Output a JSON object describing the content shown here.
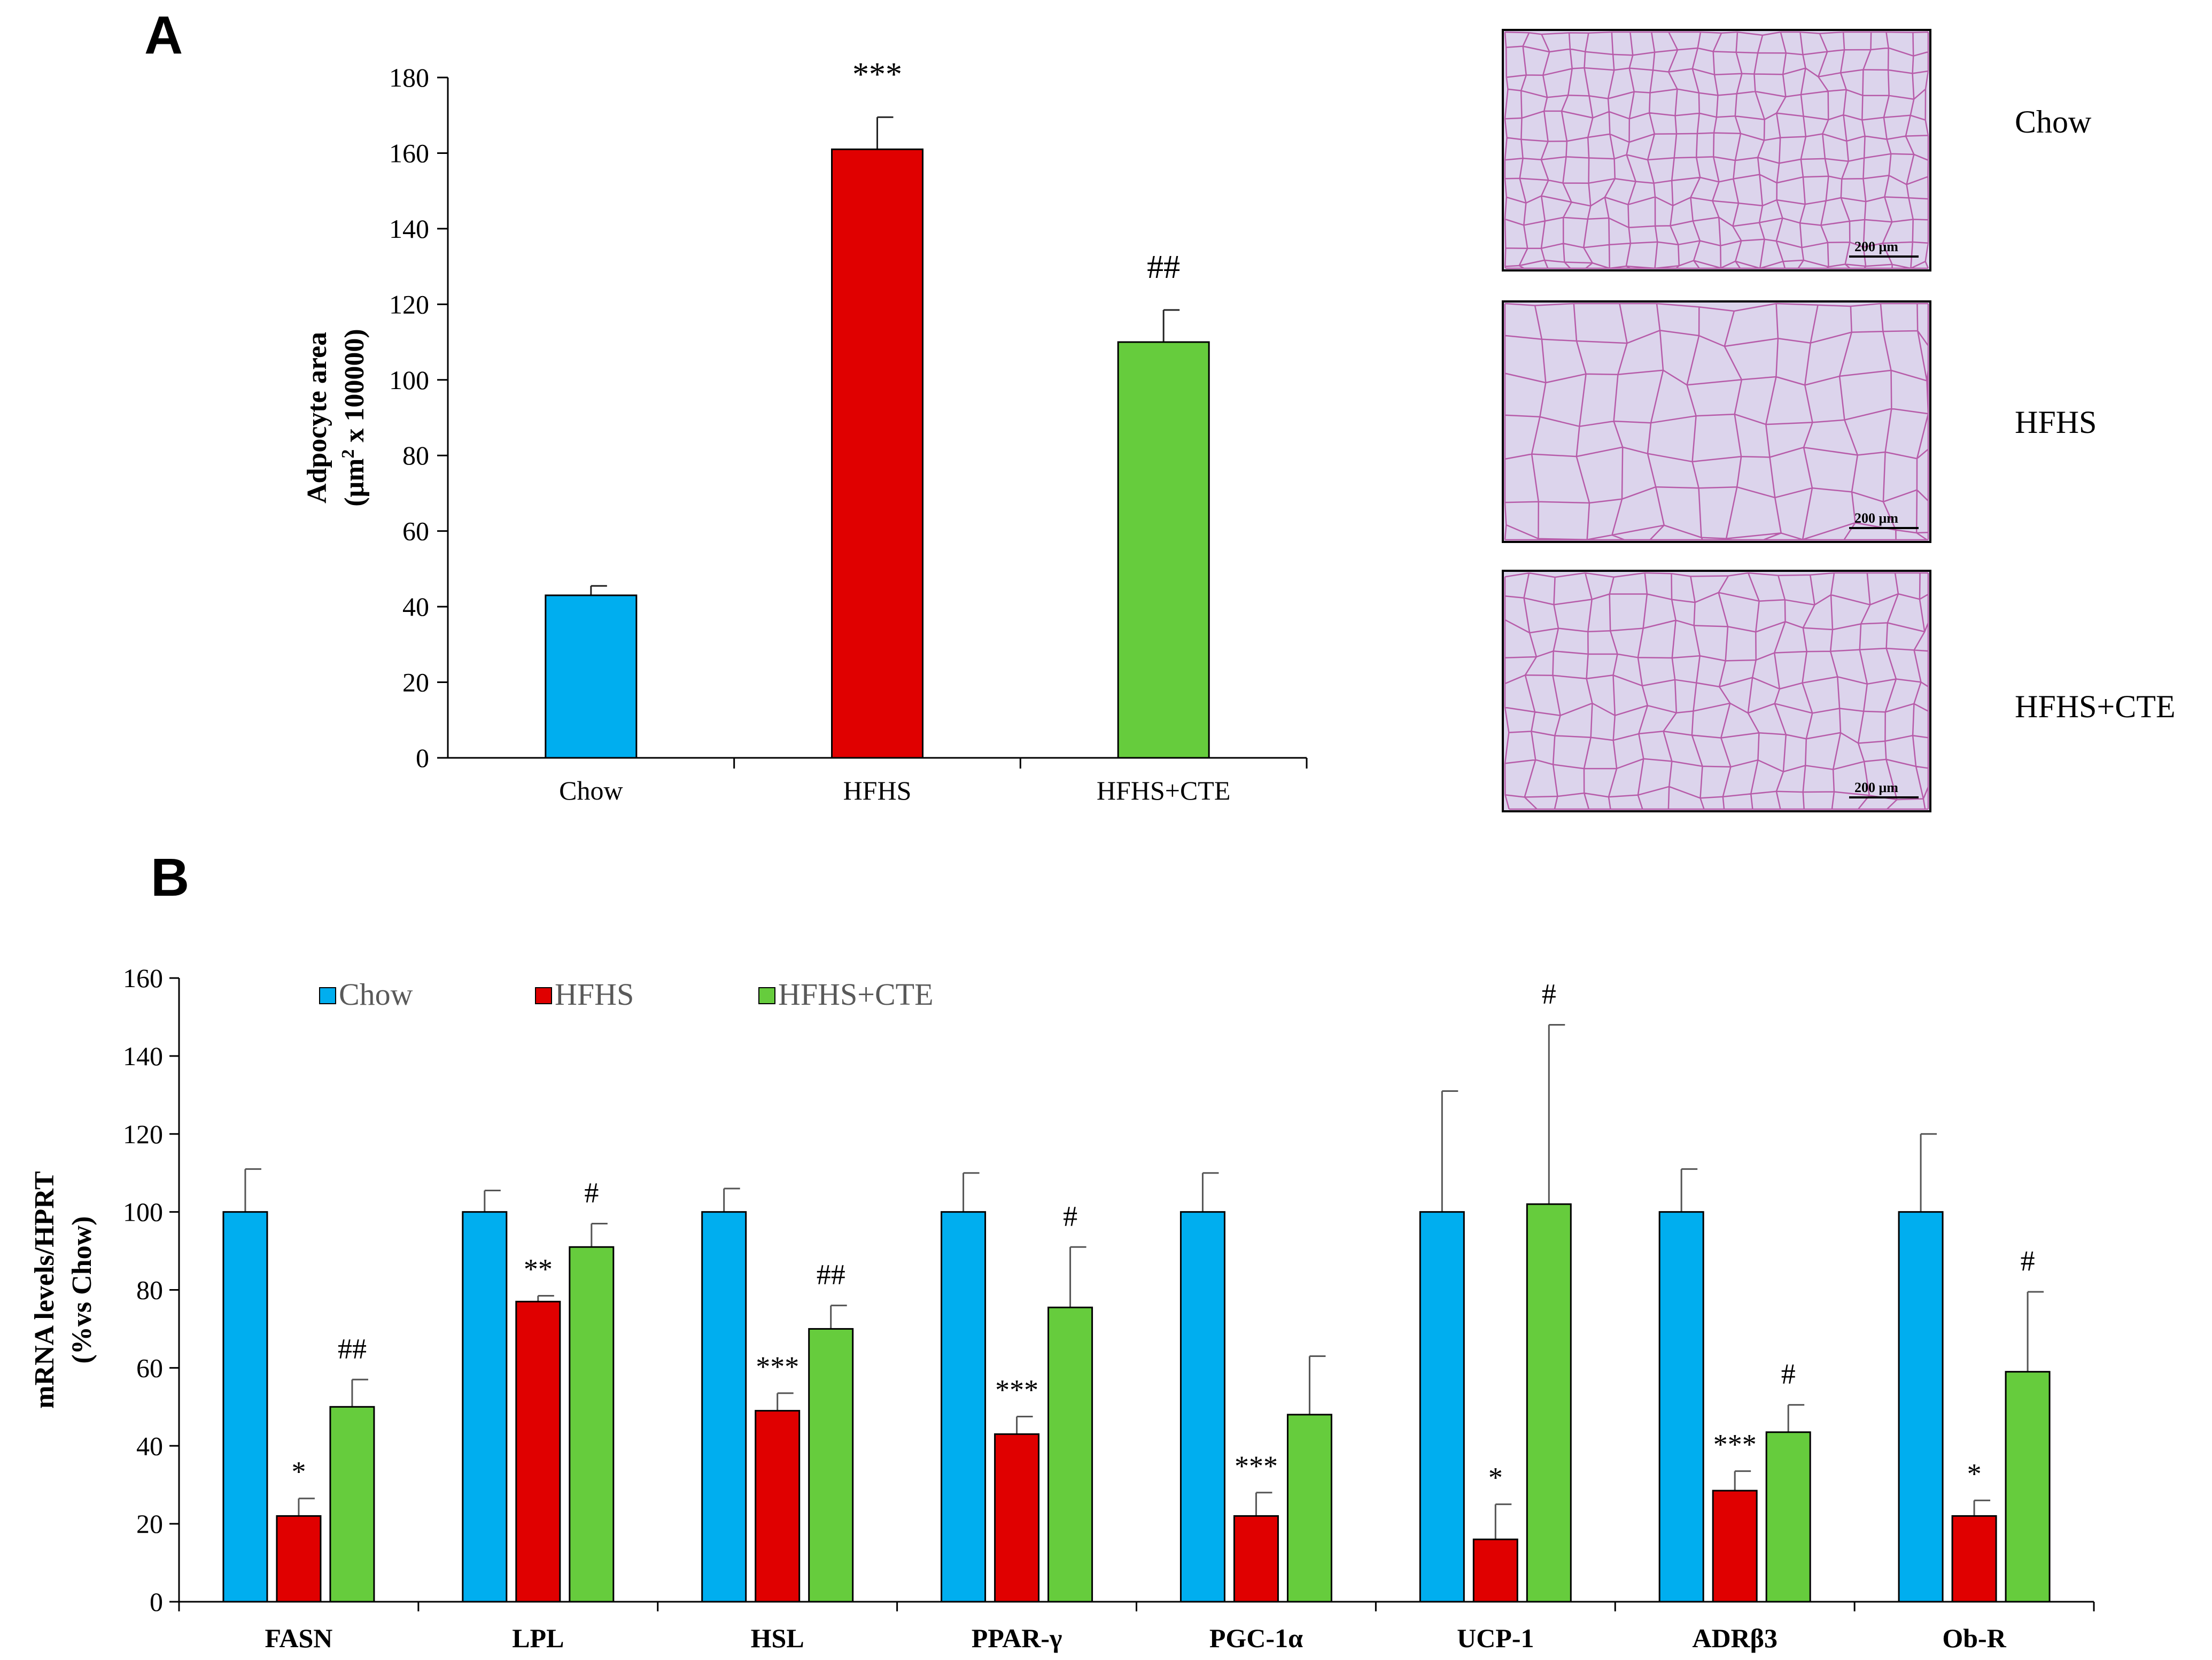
{
  "panels": {
    "a": "A",
    "b": "B"
  },
  "colors": {
    "chow": "#00AEEF",
    "hfhs": "#E00000",
    "hfhs_cte": "#66CC3D",
    "axis": "#000000",
    "tissue_bg": "#DCD4EC",
    "tissue_line": "#B0479E",
    "tissue_frame": "#000000"
  },
  "micrographs": {
    "labels": [
      "Chow",
      "HFHS",
      "HFHS+CTE"
    ],
    "scale_bar": "200 μm"
  },
  "chart_data": [
    {
      "type": "bar",
      "panel": "A",
      "categories": [
        "Chow",
        "HFHS",
        "HFHS+CTE"
      ],
      "values": [
        43,
        161,
        110
      ],
      "errors": [
        2.5,
        8.5,
        8.5
      ],
      "significance": [
        "",
        "***",
        "##"
      ],
      "ylim": [
        0,
        180
      ],
      "yticks": [
        0,
        20,
        40,
        60,
        80,
        100,
        120,
        140,
        160,
        180
      ],
      "ylabel_line1": "Adpocyte area",
      "ylabel_line2_pre": "(μm",
      "ylabel_line2_sup": "2",
      "ylabel_line2_post": " x 100000)",
      "xlabel": ""
    },
    {
      "type": "bar",
      "panel": "B",
      "categories": [
        "FASN",
        "LPL",
        "HSL",
        "PPAR-γ",
        "PGC-1α",
        "UCP-1",
        "ADRβ3",
        "Ob-R"
      ],
      "series": [
        {
          "name": "Chow",
          "values": [
            100,
            100,
            100,
            100,
            100,
            100,
            100,
            100
          ],
          "errors": [
            11,
            5.5,
            6,
            10,
            10,
            31,
            11,
            20
          ],
          "significance": [
            "",
            "",
            "",
            "",
            "",
            "",
            "",
            ""
          ]
        },
        {
          "name": "HFHS",
          "values": [
            22,
            77,
            49,
            43,
            22,
            16,
            28.5,
            22
          ],
          "errors": [
            4.5,
            1.5,
            4.5,
            4.5,
            6,
            9,
            5,
            4
          ],
          "significance": [
            "*",
            "**",
            "***",
            "***",
            "***",
            "*",
            "***",
            "*"
          ]
        },
        {
          "name": "HFHS+CTE",
          "values": [
            50,
            91,
            70,
            75.5,
            48,
            102,
            43.5,
            59
          ],
          "errors": [
            7,
            6,
            6,
            15.5,
            15,
            46,
            7,
            20.5
          ],
          "significance": [
            "##",
            "#",
            "##",
            "#",
            "",
            "#",
            "#",
            "#"
          ]
        }
      ],
      "ylim": [
        0,
        160
      ],
      "yticks": [
        0,
        20,
        40,
        60,
        80,
        100,
        120,
        140,
        160
      ],
      "ylabel_line1": "mRNA levels/HPRT",
      "ylabel_line2": "(%vs Chow)",
      "xlabel": "",
      "legend": "top-left"
    }
  ]
}
